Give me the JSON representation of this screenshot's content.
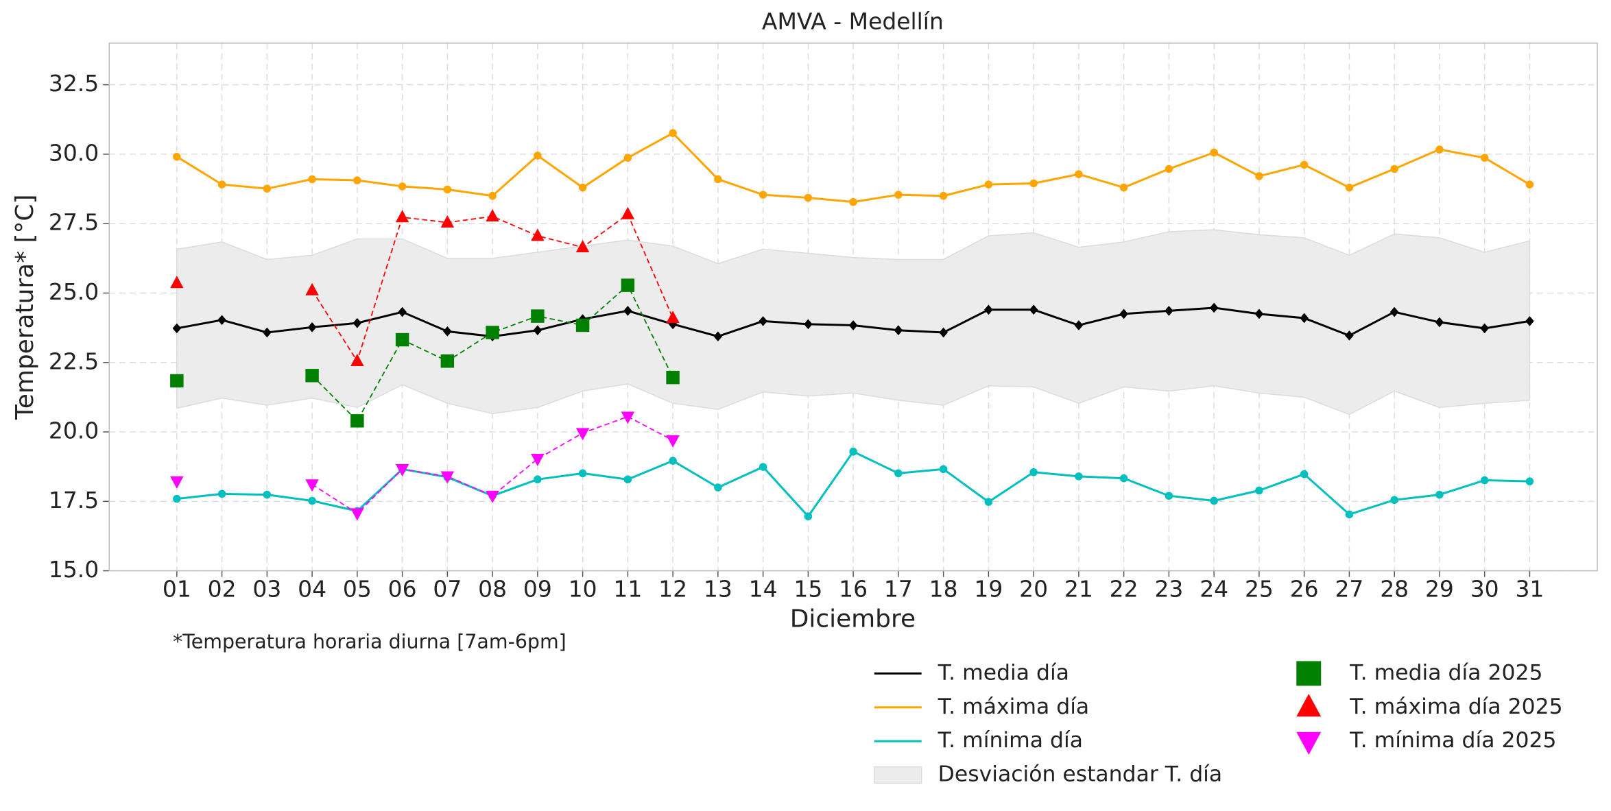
{
  "chart_data": {
    "type": "line",
    "title": "AMVA - Medellín",
    "xlabel": "Diciembre",
    "ylabel": "Temperatura* [°C]",
    "footnote": "*Temperatura horaria diurna [7am-6pm]",
    "categories": [
      "01",
      "02",
      "03",
      "04",
      "05",
      "06",
      "07",
      "08",
      "09",
      "10",
      "11",
      "12",
      "13",
      "14",
      "15",
      "16",
      "17",
      "18",
      "19",
      "20",
      "21",
      "22",
      "23",
      "24",
      "25",
      "26",
      "27",
      "28",
      "29",
      "30",
      "31"
    ],
    "ylim": [
      15,
      34
    ],
    "yticks": [
      {
        "value": 15,
        "label": "15.0"
      },
      {
        "value": 17.5,
        "label": "17.5"
      },
      {
        "value": 20,
        "label": "20.0"
      },
      {
        "value": 22.5,
        "label": "22.5"
      },
      {
        "value": 25,
        "label": "25.0"
      },
      {
        "value": 27.5,
        "label": "27.5"
      },
      {
        "value": 30,
        "label": "30.0"
      },
      {
        "value": 32.5,
        "label": "32.5"
      }
    ],
    "grid": true,
    "band": {
      "name": "Desviación estandar T. día",
      "color": "#ececec",
      "upper": [
        26.58,
        26.84,
        26.21,
        26.36,
        26.95,
        26.95,
        26.25,
        26.25,
        26.47,
        26.69,
        26.91,
        26.69,
        26.06,
        26.58,
        26.43,
        26.28,
        26.21,
        26.21,
        27.06,
        27.17,
        26.65,
        26.84,
        27.21,
        27.28,
        27.1,
        26.99,
        26.36,
        27.13,
        26.99,
        26.47,
        26.88
      ],
      "lower": [
        20.85,
        21.22,
        20.96,
        21.22,
        20.88,
        21.7,
        21.03,
        20.66,
        20.88,
        21.47,
        21.73,
        21.03,
        20.81,
        21.44,
        21.29,
        21.4,
        21.14,
        20.96,
        21.66,
        21.62,
        21.03,
        21.62,
        21.47,
        21.66,
        21.4,
        21.25,
        20.63,
        21.47,
        20.88,
        21.03,
        21.14
      ]
    },
    "series": [
      {
        "name": "T. media día",
        "color": "#000000",
        "marker": "diamond",
        "linestyle": "solid",
        "values": [
          23.73,
          24.03,
          23.58,
          23.77,
          23.92,
          24.32,
          23.62,
          23.44,
          23.66,
          24.06,
          24.36,
          23.88,
          23.44,
          23.99,
          23.88,
          23.84,
          23.66,
          23.58,
          24.4,
          24.4,
          23.84,
          24.25,
          24.36,
          24.47,
          24.25,
          24.1,
          23.47,
          24.32,
          23.95,
          23.73,
          23.99
        ]
      },
      {
        "name": "T. máxima día",
        "color": "#ffa500",
        "marker": "circle",
        "linestyle": "solid",
        "values": [
          29.91,
          28.91,
          28.76,
          29.1,
          29.06,
          28.84,
          28.73,
          28.5,
          29.95,
          28.8,
          29.87,
          30.76,
          29.1,
          28.54,
          28.43,
          28.28,
          28.54,
          28.5,
          28.91,
          28.95,
          29.28,
          28.8,
          29.47,
          30.06,
          29.21,
          29.62,
          28.8,
          29.47,
          30.17,
          29.87,
          28.91
        ]
      },
      {
        "name": "T. mínima día",
        "color": "#00bfbf",
        "marker": "circle",
        "linestyle": "solid",
        "values": [
          17.59,
          17.77,
          17.74,
          17.52,
          17.15,
          18.66,
          18.37,
          17.7,
          18.29,
          18.51,
          18.29,
          18.96,
          18.0,
          18.74,
          16.96,
          19.29,
          18.51,
          18.66,
          17.48,
          18.55,
          18.4,
          18.33,
          17.7,
          17.52,
          17.89,
          18.48,
          17.03,
          17.55,
          17.74,
          18.26,
          18.22
        ]
      },
      {
        "name": "T. media día 2025",
        "color": "#008000",
        "marker": "square",
        "linestyle": "dashed",
        "values": [
          21.84,
          null,
          null,
          22.03,
          20.4,
          23.32,
          22.55,
          23.58,
          24.17,
          23.84,
          25.28,
          21.96,
          null,
          null,
          null,
          null,
          null,
          null,
          null,
          null,
          null,
          null,
          null,
          null,
          null,
          null,
          null,
          null,
          null,
          null,
          null
        ]
      },
      {
        "name": "T. máxima día 2025",
        "color": "#ff0000",
        "marker": "triangle-up",
        "linestyle": "dashed",
        "values": [
          25.36,
          null,
          null,
          25.1,
          22.55,
          27.73,
          27.54,
          27.76,
          27.06,
          26.65,
          27.84,
          24.1,
          null,
          null,
          null,
          null,
          null,
          null,
          null,
          null,
          null,
          null,
          null,
          null,
          null,
          null,
          null,
          null,
          null,
          null,
          null
        ]
      },
      {
        "name": "T. mínima día 2025",
        "color": "#ff00ff",
        "marker": "triangle-down",
        "linestyle": "dashed",
        "values": [
          18.22,
          null,
          null,
          18.11,
          17.07,
          18.66,
          18.4,
          17.7,
          19.03,
          19.96,
          20.55,
          19.7,
          null,
          null,
          null,
          null,
          null,
          null,
          null,
          null,
          null,
          null,
          null,
          null,
          null,
          null,
          null,
          null,
          null,
          null,
          null
        ]
      }
    ]
  }
}
